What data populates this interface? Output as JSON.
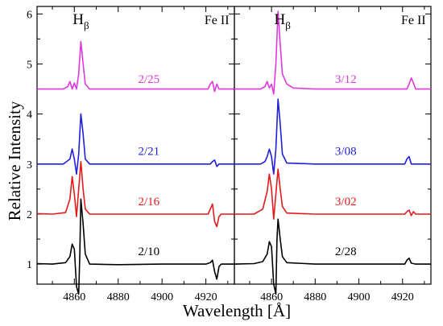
{
  "chart_data": {
    "type": "line",
    "ylabel": "Relative Intensity",
    "xlabel": "Wavelength [Å]",
    "ylim": [
      0.6,
      6.15
    ],
    "yticks": [
      1,
      2,
      3,
      4,
      5,
      6
    ],
    "grid": false,
    "panels": [
      {
        "xlim": [
          4843,
          4933
        ],
        "xticks": [
          4860,
          4880,
          4900,
          4920
        ],
        "line_labels": [
          {
            "text": "H",
            "sub": "β",
            "x": 4863,
            "y": 5.8
          },
          {
            "text": "Fe II",
            "x": 4925,
            "y": 5.8
          }
        ],
        "series": [
          {
            "name": "2/10",
            "color": "#000000",
            "label_at": [
              4894,
              1.18
            ],
            "points": [
              [
                4843,
                1.01
              ],
              [
                4850,
                1.0
              ],
              [
                4856,
                1.03
              ],
              [
                4858,
                1.15
              ],
              [
                4859,
                1.4
              ],
              [
                4860,
                1.3
              ],
              [
                4861,
                0.55
              ],
              [
                4862,
                0.4
              ],
              [
                4862.5,
                1.2
              ],
              [
                4863,
                2.3
              ],
              [
                4864,
                1.8
              ],
              [
                4865,
                1.2
              ],
              [
                4867,
                1.0
              ],
              [
                4880,
                0.99
              ],
              [
                4900,
                1.0
              ],
              [
                4920,
                1.0
              ],
              [
                4922,
                1.03
              ],
              [
                4923,
                1.08
              ],
              [
                4924,
                0.85
              ],
              [
                4925,
                0.7
              ],
              [
                4926,
                0.95
              ],
              [
                4927,
                1.0
              ],
              [
                4933,
                1.0
              ]
            ]
          },
          {
            "name": "2/16",
            "color": "#e41a1c",
            "label_at": [
              4894,
              2.18
            ],
            "points": [
              [
                4843,
                2.01
              ],
              [
                4850,
                2.0
              ],
              [
                4856,
                2.03
              ],
              [
                4858,
                2.3
              ],
              [
                4859,
                2.75
              ],
              [
                4860,
                2.4
              ],
              [
                4861,
                1.95
              ],
              [
                4862,
                2.5
              ],
              [
                4863,
                3.05
              ],
              [
                4864,
                2.5
              ],
              [
                4865,
                2.1
              ],
              [
                4867,
                2.0
              ],
              [
                4880,
                2.0
              ],
              [
                4900,
                2.0
              ],
              [
                4921,
                2.0
              ],
              [
                4922,
                2.1
              ],
              [
                4923,
                2.2
              ],
              [
                4924,
                1.85
              ],
              [
                4925,
                1.75
              ],
              [
                4926,
                1.95
              ],
              [
                4927,
                2.0
              ],
              [
                4933,
                2.0
              ]
            ]
          },
          {
            "name": "2/21",
            "color": "#1f1fdd",
            "label_at": [
              4894,
              3.18
            ],
            "points": [
              [
                4843,
                3.0
              ],
              [
                4855,
                3.0
              ],
              [
                4858,
                3.1
              ],
              [
                4859,
                3.3
              ],
              [
                4860,
                3.1
              ],
              [
                4861,
                2.8
              ],
              [
                4862,
                3.2
              ],
              [
                4863,
                4.0
              ],
              [
                4864,
                3.6
              ],
              [
                4865,
                3.1
              ],
              [
                4867,
                3.0
              ],
              [
                4880,
                3.0
              ],
              [
                4900,
                3.0
              ],
              [
                4922,
                3.0
              ],
              [
                4923,
                3.05
              ],
              [
                4924,
                3.08
              ],
              [
                4925,
                2.95
              ],
              [
                4926,
                3.0
              ],
              [
                4933,
                3.0
              ]
            ]
          },
          {
            "name": "2/25",
            "color": "#e038e0",
            "label_at": [
              4894,
              4.62
            ],
            "points": [
              [
                4843,
                4.5
              ],
              [
                4855,
                4.5
              ],
              [
                4857,
                4.55
              ],
              [
                4858,
                4.65
              ],
              [
                4859,
                4.5
              ],
              [
                4860,
                4.62
              ],
              [
                4861,
                4.5
              ],
              [
                4862,
                4.8
              ],
              [
                4863,
                5.45
              ],
              [
                4864,
                5.0
              ],
              [
                4865,
                4.6
              ],
              [
                4867,
                4.5
              ],
              [
                4880,
                4.5
              ],
              [
                4900,
                4.5
              ],
              [
                4921,
                4.5
              ],
              [
                4922,
                4.6
              ],
              [
                4923,
                4.65
              ],
              [
                4924,
                4.45
              ],
              [
                4925,
                4.6
              ],
              [
                4926,
                4.5
              ],
              [
                4933,
                4.5
              ]
            ]
          }
        ]
      },
      {
        "xlim": [
          4843,
          4933
        ],
        "xticks": [
          4860,
          4880,
          4900,
          4920
        ],
        "line_labels": [
          {
            "text": "H",
            "sub": "β",
            "x": 4865,
            "y": 5.8
          },
          {
            "text": "Fe II",
            "x": 4925,
            "y": 5.8
          }
        ],
        "series": [
          {
            "name": "2/28",
            "color": "#000000",
            "label_at": [
              4894,
              1.18
            ],
            "points": [
              [
                4843,
                1.0
              ],
              [
                4852,
                1.01
              ],
              [
                4856,
                1.05
              ],
              [
                4858,
                1.2
              ],
              [
                4859,
                1.45
              ],
              [
                4860,
                1.35
              ],
              [
                4861,
                0.6
              ],
              [
                4862,
                0.4
              ],
              [
                4862.5,
                1.5
              ],
              [
                4863,
                1.9
              ],
              [
                4864,
                1.5
              ],
              [
                4865,
                1.15
              ],
              [
                4867,
                1.03
              ],
              [
                4880,
                1.0
              ],
              [
                4900,
                1.0
              ],
              [
                4921,
                1.0
              ],
              [
                4922,
                1.08
              ],
              [
                4923,
                1.12
              ],
              [
                4924,
                1.02
              ],
              [
                4926,
                1.0
              ],
              [
                4933,
                1.0
              ]
            ]
          },
          {
            "name": "3/02",
            "color": "#e41a1c",
            "label_at": [
              4894,
              2.18
            ],
            "points": [
              [
                4843,
                2.0
              ],
              [
                4852,
                2.0
              ],
              [
                4856,
                2.1
              ],
              [
                4858,
                2.45
              ],
              [
                4859,
                2.8
              ],
              [
                4860,
                2.5
              ],
              [
                4861,
                1.9
              ],
              [
                4862,
                2.4
              ],
              [
                4863,
                2.9
              ],
              [
                4864,
                2.5
              ],
              [
                4865,
                2.15
              ],
              [
                4867,
                2.02
              ],
              [
                4880,
                2.0
              ],
              [
                4900,
                2.0
              ],
              [
                4921,
                2.0
              ],
              [
                4922,
                2.05
              ],
              [
                4923,
                2.08
              ],
              [
                4924,
                1.97
              ],
              [
                4925,
                2.05
              ],
              [
                4926,
                2.0
              ],
              [
                4933,
                2.0
              ]
            ]
          },
          {
            "name": "3/08",
            "color": "#1f1fdd",
            "label_at": [
              4894,
              3.18
            ],
            "points": [
              [
                4843,
                3.0
              ],
              [
                4855,
                3.0
              ],
              [
                4857,
                3.05
              ],
              [
                4858,
                3.15
              ],
              [
                4859,
                3.3
              ],
              [
                4860,
                3.15
              ],
              [
                4861,
                2.8
              ],
              [
                4862,
                3.3
              ],
              [
                4863,
                4.3
              ],
              [
                4864,
                3.8
              ],
              [
                4865,
                3.2
              ],
              [
                4867,
                3.02
              ],
              [
                4880,
                3.0
              ],
              [
                4900,
                3.0
              ],
              [
                4921,
                3.0
              ],
              [
                4922,
                3.1
              ],
              [
                4923,
                3.15
              ],
              [
                4924,
                3.0
              ],
              [
                4926,
                3.0
              ],
              [
                4933,
                3.0
              ]
            ]
          },
          {
            "name": "3/12",
            "color": "#e038e0",
            "label_at": [
              4894,
              4.62
            ],
            "points": [
              [
                4843,
                4.5
              ],
              [
                4855,
                4.5
              ],
              [
                4857,
                4.55
              ],
              [
                4858,
                4.65
              ],
              [
                4859,
                4.52
              ],
              [
                4860,
                4.6
              ],
              [
                4861,
                4.4
              ],
              [
                4862,
                5.0
              ],
              [
                4863,
                6.05
              ],
              [
                4864,
                5.4
              ],
              [
                4865,
                4.8
              ],
              [
                4867,
                4.6
              ],
              [
                4870,
                4.52
              ],
              [
                4880,
                4.5
              ],
              [
                4900,
                4.5
              ],
              [
                4922,
                4.5
              ],
              [
                4923,
                4.6
              ],
              [
                4924,
                4.72
              ],
              [
                4925,
                4.62
              ],
              [
                4926,
                4.5
              ],
              [
                4933,
                4.5
              ]
            ]
          }
        ]
      }
    ]
  }
}
